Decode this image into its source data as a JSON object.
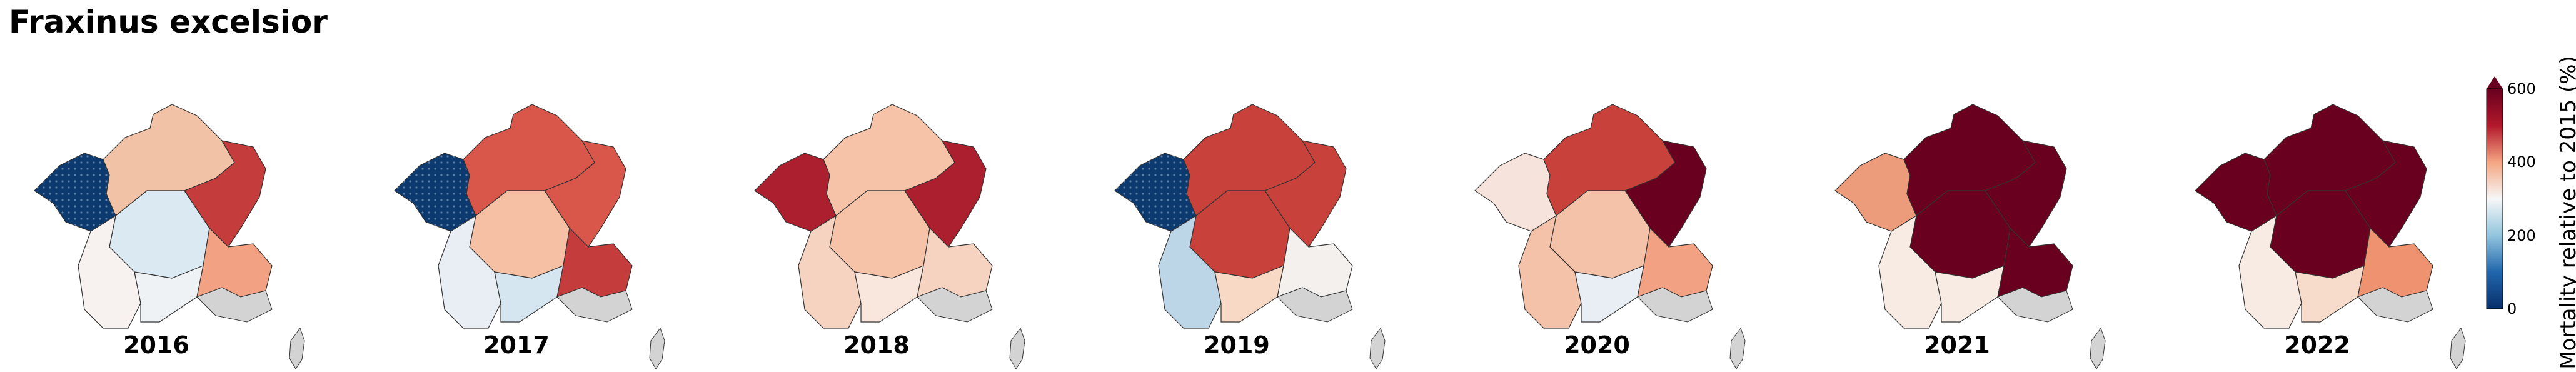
{
  "title": "Fraxinus excelsior",
  "colorbar": {
    "label": "Mortality relative to 2015 (%)",
    "ticks": [
      "0",
      "200",
      "400",
      "600"
    ],
    "colors": [
      "#08306b",
      "#2166ac",
      "#92c5de",
      "#f7f7f7",
      "#f4a582",
      "#b2182b",
      "#67001f"
    ]
  },
  "panels": [
    {
      "year": "2016",
      "regions": {
        "nw": "#0c3a6e",
        "ne": "#f2c2a6",
        "east": "#c43c3c",
        "center": "#dbe9f3",
        "sw": "#f7f1ef",
        "se": "#eef2f5",
        "alps": "#f2a282"
      }
    },
    {
      "year": "2017",
      "regions": {
        "nw": "#0c3a6e",
        "ne": "#d9574a",
        "east": "#d9574a",
        "center": "#f6c0a4",
        "sw": "#e8eef3",
        "se": "#d6e6f1",
        "alps": "#c43c3c"
      }
    },
    {
      "year": "2018",
      "regions": {
        "nw": "#ab1f2e",
        "ne": "#f6c3a8",
        "east": "#ab1f2e",
        "center": "#f6c3a8",
        "sw": "#f6d2c0",
        "se": "#f9e6dc",
        "alps": "#f6d2c0"
      }
    },
    {
      "year": "2019",
      "regions": {
        "nw": "#0c3a6e",
        "ne": "#c8413b",
        "east": "#c8413b",
        "center": "#c8413b",
        "sw": "#bcd6e8",
        "se": "#f8d9c6",
        "alps": "#f4f0ee"
      }
    },
    {
      "year": "2020",
      "regions": {
        "nw": "#f6e4dc",
        "ne": "#c8413b",
        "east": "#6a0020",
        "center": "#f4c2a8",
        "sw": "#f4c2a8",
        "se": "#e8eef3",
        "alps": "#f2a282"
      }
    },
    {
      "year": "2021",
      "regions": {
        "nw": "#ec9b7b",
        "ne": "#6a0020",
        "east": "#6a0020",
        "center": "#6a0020",
        "sw": "#f7ebe4",
        "se": "#f7ebe4",
        "alps": "#6a0020"
      }
    },
    {
      "year": "2022",
      "regions": {
        "nw": "#6a0020",
        "ne": "#6a0020",
        "east": "#6a0020",
        "center": "#6a0020",
        "sw": "#f7ebe4",
        "se": "#f8dccb",
        "alps": "#ee9270"
      }
    }
  ]
}
